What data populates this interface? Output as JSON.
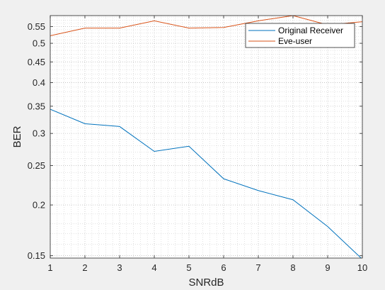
{
  "chart_data": {
    "type": "line",
    "title": "",
    "xlabel": "SNRdB",
    "ylabel": "BER",
    "x": [
      1,
      2,
      3,
      4,
      5,
      6,
      7,
      8,
      9,
      10
    ],
    "xlim": [
      1,
      10
    ],
    "ylim": [
      0.148,
      0.585
    ],
    "yscale": "log",
    "grid": "on (major and minor, dotted)",
    "legend_position": "top-right",
    "x_ticks": [
      "1",
      "2",
      "3",
      "4",
      "5",
      "6",
      "7",
      "8",
      "9",
      "10"
    ],
    "y_ticks": [
      "0.15",
      "0.2",
      "0.25",
      "0.3",
      "0.35",
      "0.4",
      "0.45",
      "0.5",
      "0.55"
    ],
    "series": [
      {
        "name": "Original Receiver",
        "color": "#0072BD",
        "values": [
          0.344,
          0.317,
          0.312,
          0.271,
          0.279,
          0.232,
          0.217,
          0.206,
          0.177,
          0.147
        ]
      },
      {
        "name": "Eve-user",
        "color": "#D95319",
        "values": [
          0.522,
          0.545,
          0.545,
          0.568,
          0.545,
          0.547,
          0.568,
          0.585,
          0.555,
          0.565
        ]
      }
    ]
  }
}
